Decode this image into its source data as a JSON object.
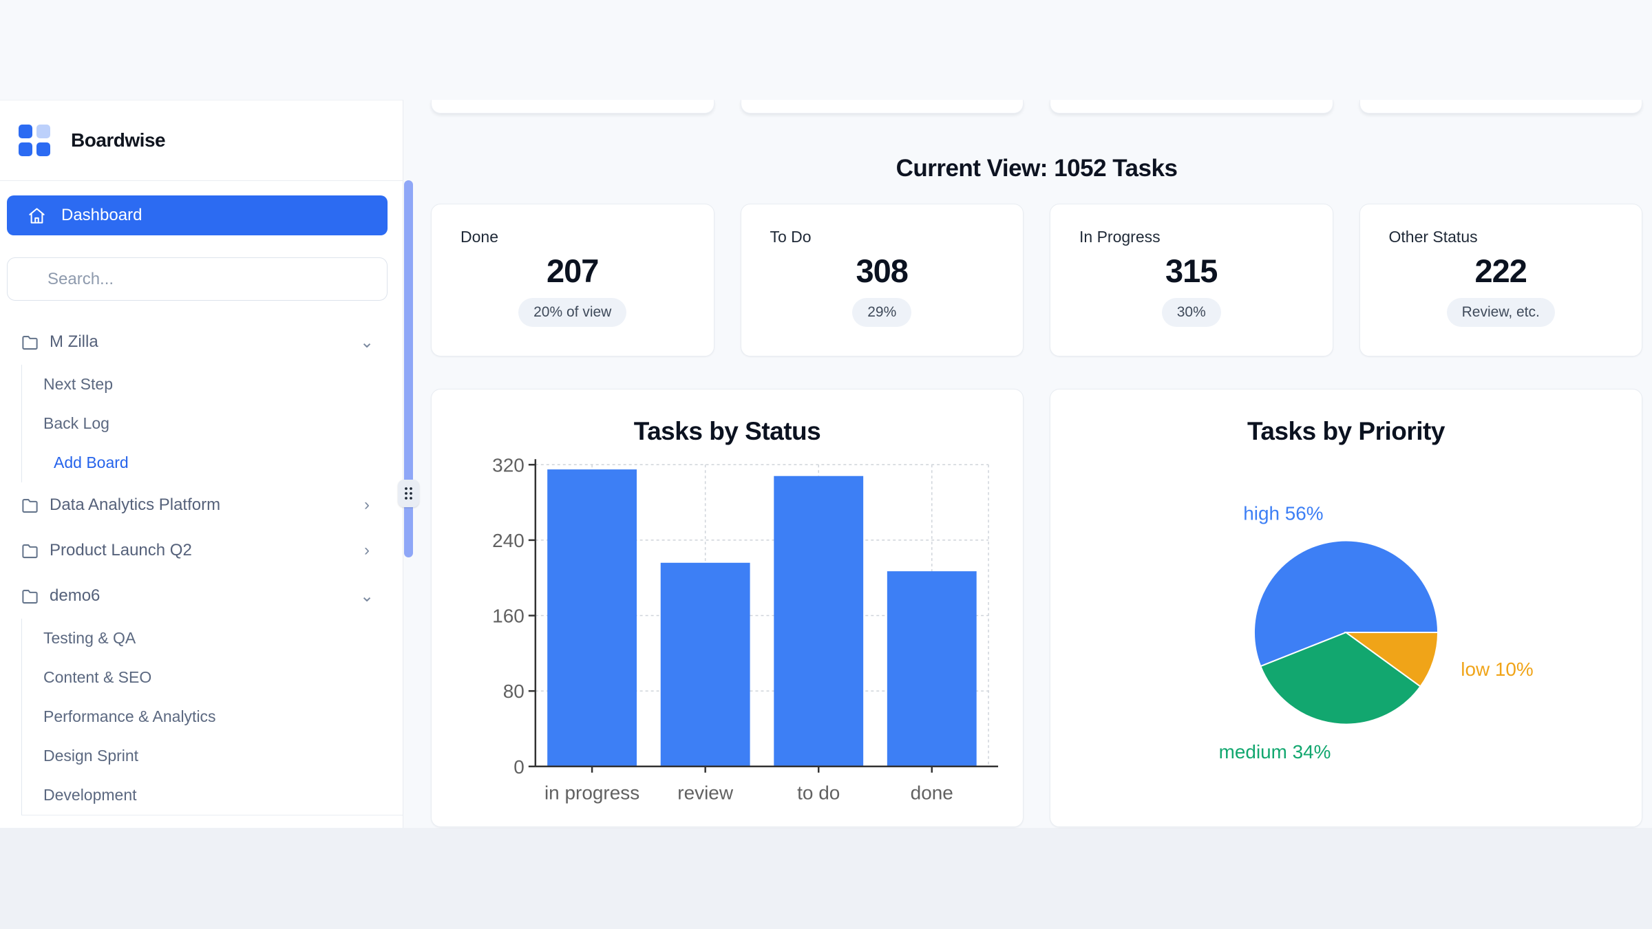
{
  "brand": {
    "name": "Boardwise"
  },
  "sidebar": {
    "dashboard_label": "Dashboard",
    "search_placeholder": "Search...",
    "sections": [
      {
        "label": "M Zilla",
        "state": "expanded",
        "children": [
          "Next Step",
          "Back Log"
        ],
        "action": "Add Board"
      },
      {
        "label": "Data Analytics Platform",
        "state": "collapsed",
        "children": []
      },
      {
        "label": "Product Launch Q2",
        "state": "collapsed",
        "children": []
      },
      {
        "label": "demo6",
        "state": "expanded",
        "children": [
          "Testing & QA",
          "Content & SEO",
          "Performance & Analytics",
          "Design Sprint",
          "Development"
        ]
      }
    ]
  },
  "header": {
    "title": "Current View: 1052 Tasks"
  },
  "stats": [
    {
      "label": "Done",
      "value": "207",
      "badge": "20% of view"
    },
    {
      "label": "To Do",
      "value": "308",
      "badge": "29%"
    },
    {
      "label": "In Progress",
      "value": "315",
      "badge": "30%"
    },
    {
      "label": "Other Status",
      "value": "222",
      "badge": "Review, etc."
    }
  ],
  "chart_data": [
    {
      "type": "bar",
      "title": "Tasks by Status",
      "categories": [
        "in progress",
        "review",
        "to do",
        "done"
      ],
      "values": [
        315,
        216,
        308,
        207
      ],
      "xlabel": "",
      "ylabel": "",
      "ylim": [
        0,
        320
      ],
      "yticks": [
        0,
        80,
        160,
        240,
        320
      ],
      "grid": true,
      "bar_color": "#3d7ff5",
      "axis_color": "#333333",
      "grid_color": "#cfd4da",
      "tick_label_color": "#616161"
    },
    {
      "type": "pie",
      "title": "Tasks by Priority",
      "labels": [
        "high",
        "medium",
        "low"
      ],
      "values": [
        56,
        34,
        10
      ],
      "unit": "%",
      "colors": [
        "#3d7ff5",
        "#12a76f",
        "#f0a418"
      ],
      "legend_position": "outside-labels"
    }
  ],
  "colors": {
    "accent_blue": "#2c6bf2",
    "bar_blue": "#3d7ff5",
    "pie_green": "#12a76f",
    "pie_orange": "#f0a418",
    "scroll_thumb": "#8fa7f7",
    "page_bg": "#f7f9fc",
    "band_bg": "#eef1f6"
  }
}
